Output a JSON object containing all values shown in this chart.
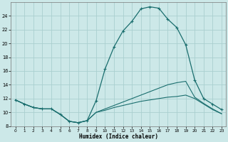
{
  "xlabel": "Humidex (Indice chaleur)",
  "bg_color": "#cce8e8",
  "grid_color": "#aacfcf",
  "line_color": "#1a6e6e",
  "xlim": [
    -0.5,
    23.5
  ],
  "ylim": [
    8,
    26
  ],
  "xticks": [
    0,
    1,
    2,
    3,
    4,
    5,
    6,
    7,
    8,
    9,
    10,
    11,
    12,
    13,
    14,
    15,
    16,
    17,
    18,
    19,
    20,
    21,
    22,
    23
  ],
  "yticks": [
    8,
    10,
    12,
    14,
    16,
    18,
    20,
    22,
    24
  ],
  "curve1_x": [
    0,
    1,
    2,
    3,
    4,
    5,
    6,
    7,
    8,
    9,
    10,
    11,
    12,
    13,
    14,
    15,
    16,
    17,
    18,
    19,
    20,
    21,
    22,
    23
  ],
  "curve1_y": [
    11.8,
    11.2,
    10.7,
    10.5,
    10.5,
    9.7,
    8.7,
    8.5,
    8.8,
    11.7,
    16.3,
    19.5,
    21.8,
    23.2,
    25.0,
    25.3,
    25.1,
    23.5,
    22.3,
    19.8,
    14.7,
    12.0,
    11.2,
    10.4
  ],
  "curve2_x": [
    0,
    1,
    2,
    3,
    4,
    5,
    6,
    7,
    8,
    9,
    10,
    11,
    12,
    13,
    14,
    15,
    16,
    17,
    18,
    19,
    20,
    21,
    22,
    23
  ],
  "curve2_y": [
    11.8,
    11.2,
    10.7,
    10.5,
    10.5,
    9.7,
    8.7,
    8.5,
    8.8,
    10.0,
    10.5,
    11.0,
    11.5,
    12.0,
    12.5,
    13.0,
    13.5,
    14.0,
    14.3,
    14.5,
    12.2,
    11.3,
    10.5,
    9.8
  ],
  "curve3_x": [
    0,
    1,
    2,
    3,
    4,
    5,
    6,
    7,
    8,
    9,
    10,
    11,
    12,
    13,
    14,
    15,
    16,
    17,
    18,
    19,
    20,
    21,
    22,
    23
  ],
  "curve3_y": [
    11.8,
    11.2,
    10.7,
    10.5,
    10.5,
    9.7,
    8.7,
    8.5,
    8.8,
    10.0,
    10.3,
    10.7,
    11.0,
    11.3,
    11.6,
    11.8,
    12.0,
    12.2,
    12.3,
    12.5,
    12.0,
    11.2,
    10.4,
    9.8
  ]
}
